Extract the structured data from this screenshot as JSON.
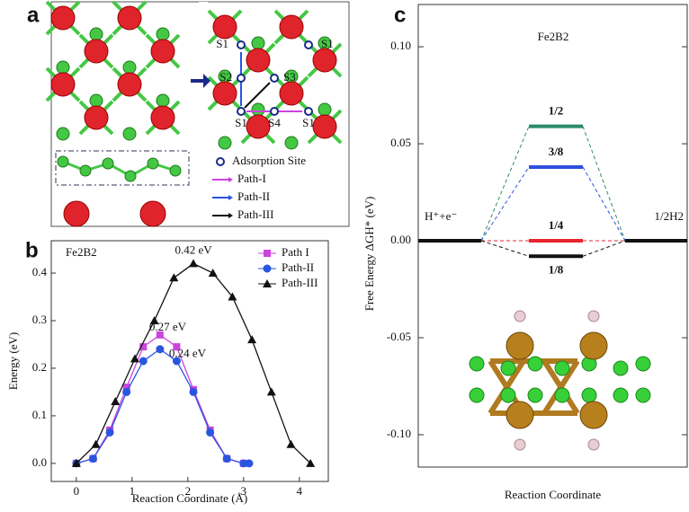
{
  "panel_labels": [
    "a",
    "b",
    "c"
  ],
  "panel_a": {
    "sites": [
      "S1",
      "S1",
      "S2",
      "S3",
      "S1",
      "S4",
      "S1"
    ],
    "legend": [
      "Adsorption Site",
      "Path-I",
      "Path-II",
      "Path-III"
    ]
  },
  "chart_data": [
    {
      "type": "line",
      "title": "Fe2B2",
      "xlabel": "Reaction Coordinate (Å)",
      "ylabel": "Energy (eV)",
      "xlim": [
        -0.45,
        4.52
      ],
      "ylim": [
        -0.038,
        0.468
      ],
      "xticks": [
        0,
        1,
        2,
        3,
        4
      ],
      "yticks": [
        {
          "value": 0,
          "label": "0.0"
        },
        0.1,
        0.2,
        0.3,
        0.4
      ],
      "legend": "upper right",
      "series": [
        {
          "name": "Path I",
          "color": "#cc44dd",
          "marker": "square",
          "x": [
            0,
            0.3,
            0.6,
            0.9,
            1.2,
            1.5,
            1.8,
            2.1,
            2.4,
            2.7,
            3.0
          ],
          "values": [
            0,
            0.01,
            0.07,
            0.16,
            0.245,
            0.27,
            0.245,
            0.155,
            0.07,
            0.01,
            0
          ]
        },
        {
          "name": "Path-II",
          "color": "#2a55e0",
          "marker": "circle",
          "x": [
            0,
            0.3,
            0.6,
            0.9,
            1.2,
            1.5,
            1.8,
            2.1,
            2.4,
            2.7,
            3.0,
            3.1
          ],
          "values": [
            0,
            0.01,
            0.065,
            0.15,
            0.215,
            0.24,
            0.215,
            0.15,
            0.065,
            0.01,
            0,
            0
          ]
        },
        {
          "name": "Path-III",
          "color": "#111111",
          "marker": "triangle",
          "x": [
            0,
            0.35,
            0.7,
            1.05,
            1.4,
            1.75,
            2.1,
            2.45,
            2.8,
            3.15,
            3.5,
            3.85,
            4.2
          ],
          "values": [
            0,
            0.04,
            0.13,
            0.22,
            0.3,
            0.39,
            0.42,
            0.4,
            0.35,
            0.26,
            0.15,
            0.04,
            0
          ]
        }
      ],
      "annotations": [
        "0.27 eV",
        "0.24 eV",
        "0.42 eV"
      ]
    },
    {
      "type": "energy_levels",
      "title": "Fe2B2",
      "xlabel": "Reaction Coordinate",
      "ylabel": "Free Energy ΔGH* (eV)",
      "ylim": [
        -0.1167,
        0.1218
      ],
      "yticks": [
        {
          "value": 0.1,
          "label": "0.10"
        },
        0.05,
        {
          "value": 0,
          "label": "0.00"
        },
        -0.05,
        {
          "value": -0.1,
          "label": "-0.10"
        }
      ],
      "start_label": "H⁺+e⁻",
      "start_value": 0,
      "end_label": "1/2H2",
      "end_value": 0,
      "series": [
        {
          "name": "1/2",
          "color": "#2b8a67",
          "value": 0.059
        },
        {
          "name": "3/8",
          "color": "#2f4fe0",
          "value": 0.038
        },
        {
          "name": "1/4",
          "color": "#e8262c",
          "value": 0
        },
        {
          "name": "1/8",
          "color": "#111111",
          "value": -0.008
        }
      ]
    }
  ]
}
